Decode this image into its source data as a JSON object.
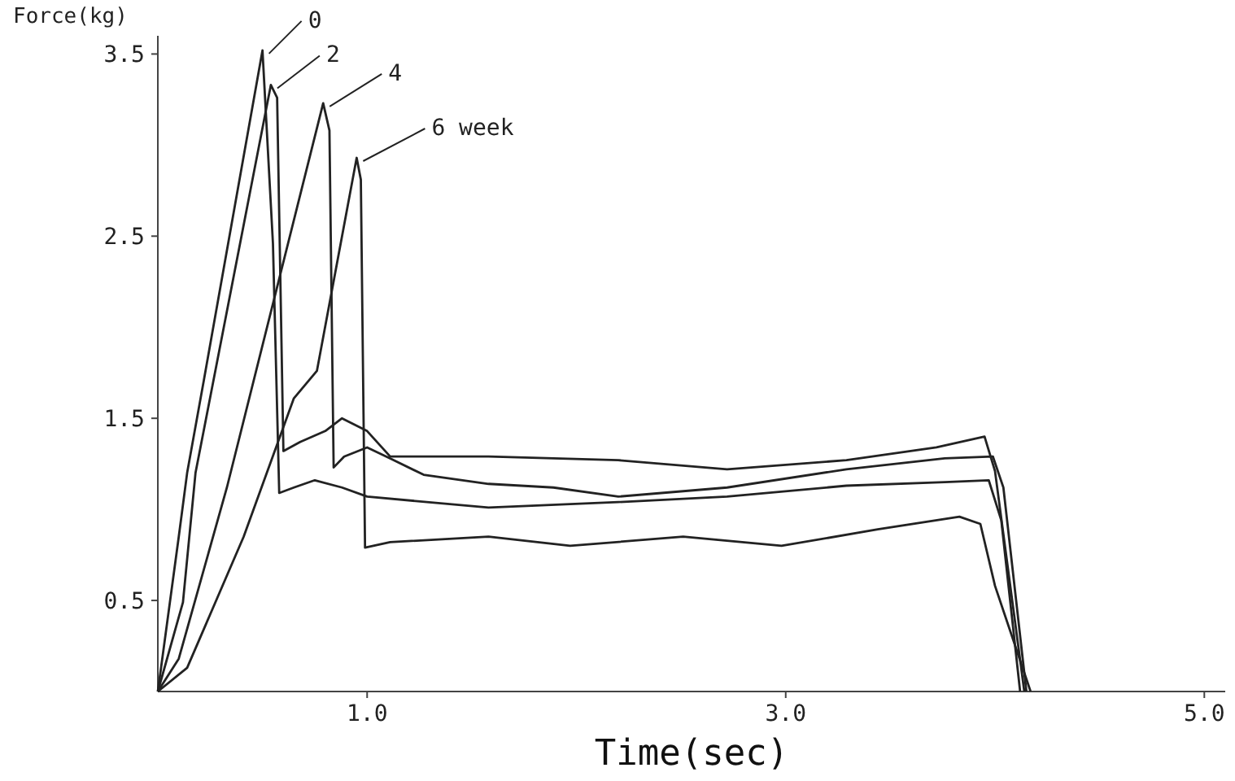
{
  "chart_data": {
    "type": "line",
    "xlabel": "Time(sec)",
    "ylabel": "Force(kg)",
    "xlim": [
      0,
      5.1
    ],
    "xticks": [
      {
        "value": 1,
        "label": "1.0"
      },
      {
        "value": 3,
        "label": "3.0"
      },
      {
        "value": 5,
        "label": "5.0"
      }
    ],
    "ylim": [
      0,
      3.6
    ],
    "yticks": [
      0.5,
      1.5,
      2.5,
      3.5
    ],
    "grid": false,
    "marker": "none",
    "line_style": "solid",
    "series": [
      {
        "name": "0",
        "color": "#222222",
        "x": [
          0,
          0.1,
          0.14,
          0.22,
          0.5,
          0.55,
          0.58,
          0.65,
          0.75,
          0.88,
          1.0,
          1.58,
          2.2,
          2.72,
          3.29,
          3.76,
          3.97,
          4.03,
          4.12
        ],
        "values": [
          0,
          0.85,
          1.2,
          1.71,
          3.52,
          2.46,
          1.09,
          1.12,
          1.16,
          1.12,
          1.07,
          1.01,
          1.04,
          1.07,
          1.13,
          1.15,
          1.16,
          0.94,
          0
        ]
      },
      {
        "name": "2",
        "color": "#222222",
        "x": [
          0,
          0.12,
          0.18,
          0.54,
          0.57,
          0.6,
          0.68,
          0.8,
          0.88,
          1.0,
          1.11,
          1.58,
          2.2,
          2.72,
          3.29,
          3.72,
          3.95,
          4.0,
          4.14
        ],
        "values": [
          0,
          0.49,
          1.2,
          3.33,
          3.26,
          1.32,
          1.37,
          1.43,
          1.5,
          1.43,
          1.29,
          1.29,
          1.27,
          1.22,
          1.27,
          1.34,
          1.4,
          1.21,
          0
        ]
      },
      {
        "name": "4",
        "color": "#222222",
        "x": [
          0,
          0.1,
          0.33,
          0.79,
          0.82,
          0.84,
          0.89,
          1.0,
          1.11,
          1.27,
          1.58,
          1.89,
          2.2,
          2.72,
          3.29,
          3.76,
          3.99,
          4.04,
          4.15
        ],
        "values": [
          0,
          0.18,
          1.12,
          3.23,
          3.08,
          1.23,
          1.29,
          1.34,
          1.28,
          1.19,
          1.14,
          1.12,
          1.07,
          1.12,
          1.22,
          1.28,
          1.29,
          1.12,
          0
        ]
      },
      {
        "name": "6 week",
        "color": "#222222",
        "x": [
          0,
          0.14,
          0.41,
          0.65,
          0.76,
          0.95,
          0.97,
          0.99,
          1.11,
          1.58,
          1.97,
          2.51,
          2.98,
          3.44,
          3.83,
          3.93,
          4.0,
          4.17
        ],
        "values": [
          0,
          0.13,
          0.85,
          1.61,
          1.76,
          2.93,
          2.81,
          0.79,
          0.82,
          0.85,
          0.8,
          0.85,
          0.8,
          0.89,
          0.96,
          0.92,
          0.58,
          0
        ]
      }
    ]
  }
}
